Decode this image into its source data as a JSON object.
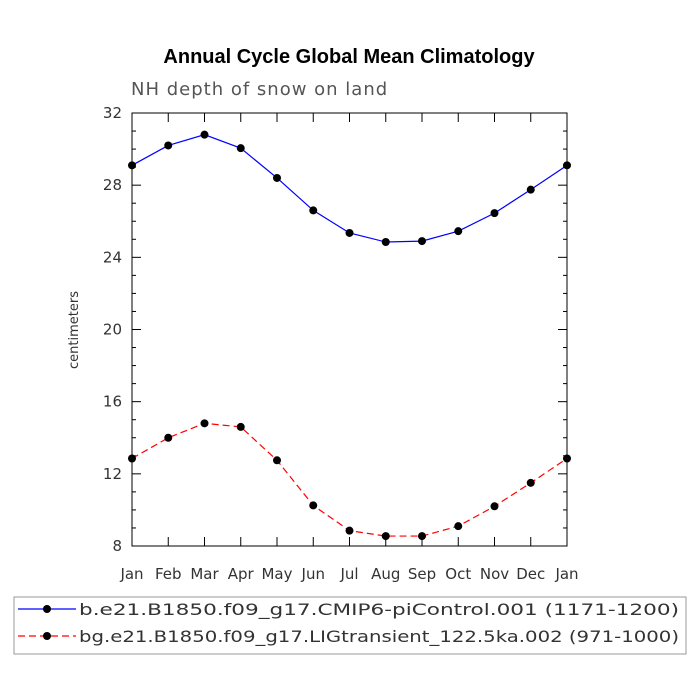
{
  "chart_data": {
    "type": "line",
    "title": "Annual Cycle Global Mean Climatology",
    "subtitle": "NH depth of snow on land",
    "ylabel": "centimeters",
    "xlabel": "",
    "categories": [
      "Jan",
      "Feb",
      "Mar",
      "Apr",
      "May",
      "Jun",
      "Jul",
      "Aug",
      "Sep",
      "Oct",
      "Nov",
      "Dec",
      "Jan"
    ],
    "ylim": [
      8,
      32
    ],
    "yticks": [
      8,
      12,
      16,
      20,
      24,
      28,
      32
    ],
    "ytick_labels": [
      "8",
      "12",
      "16",
      "20",
      "24",
      "28",
      "32"
    ],
    "grid": false,
    "legend_position": "bottom",
    "series": [
      {
        "name": "b.e21.B1850.f09_g17.CMIP6-piControl.001 (1171-1200)",
        "color": "#0000ff",
        "line_style": "solid",
        "marker_color": "#000000",
        "values": [
          29.1,
          30.2,
          30.8,
          30.05,
          28.4,
          26.6,
          25.35,
          24.85,
          24.9,
          25.45,
          26.45,
          27.75,
          29.1
        ]
      },
      {
        "name": "bg.e21.B1850.f09_g17.LIGtransient_122.5ka.002 (971-1000)",
        "color": "#ff0000",
        "line_style": "dashed",
        "marker_color": "#000000",
        "values": [
          12.85,
          14.0,
          14.8,
          14.6,
          12.75,
          10.25,
          8.85,
          8.55,
          8.55,
          9.1,
          10.2,
          11.5,
          12.85
        ]
      }
    ]
  }
}
